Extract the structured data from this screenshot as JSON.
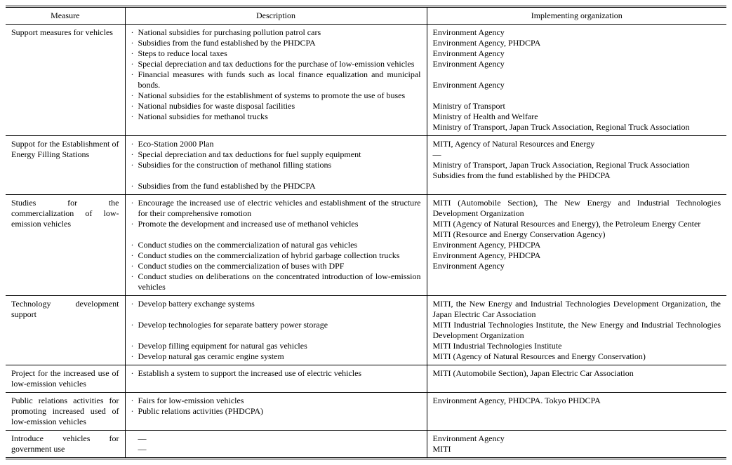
{
  "headers": {
    "measure": "Measure",
    "description": "Description",
    "org": "Implementing organization"
  },
  "rows": [
    {
      "measure": "Support measures for vehicles",
      "desc": [
        "National subsidies for purchasing pollution patrol cars",
        "Subsidies from the fund established by the PHDCPA",
        "Steps to reduce local taxes",
        "Special depreciation and tax deductions for the purchase of low-emission vehicles",
        "Financial measures with funds such as local finance equalization and municipal bonds.",
        "National subsidies for the establishment of systems to promote the use of buses",
        "National nubsidies for waste disposal facilities",
        "National subsidies for methanol trucks"
      ],
      "org": [
        "Environment Agency",
        "Environment Agency, PHDCPA",
        "Environment Agency",
        "Environment Agency",
        "",
        "Environment Agency",
        "",
        "Ministry of Transport",
        "Ministry of Health and Welfare",
        "Ministry of Transport, Japan Truck Association, Regional Truck Association"
      ]
    },
    {
      "measure": "Suppot for the Establishment of Energy Filling Stations",
      "desc": [
        "Eco-Station 2000 Plan",
        "Special depreciation and tax deductions for fuel supply equipment",
        "Subsidies for the construction of methanol filling stations",
        "",
        "Subsidies from the fund established by the PHDCPA"
      ],
      "org": [
        "MITI, Agency of Natural Resources and Energy",
        "—",
        "Ministry of Transport, Japan Truck Association, Regional Truck Association",
        "Subsidies from the fund established by the PHDCPA"
      ]
    },
    {
      "measure": "Studies for the commercialization of low-emission vehicles",
      "desc": [
        "Encourage the increased use of electric vehicles and establishment of the structure for their comprehensive romotion",
        "Promote the development and increased use of methanol vehicles",
        "",
        "Conduct studies on the commercialization of natural gas vehicles",
        "Conduct studies on the commercialization of hybrid garbage collection trucks",
        "Conduct studies on the commercialization of buses with DPF",
        "Conduct studies on deliberations on the concentrated introduction of low-emission vehicles"
      ],
      "org": [
        "MITI (Automobile Section), The New Energy and Industrial Technologies Development Organization",
        "MITI (Agency of Natural Resources and Energy), the Petroleum Energy Center",
        "MITI (Resource and Energy Conservation Agency)",
        "Environment Agency, PHDCPA",
        "Environment Agency, PHDCPA",
        "Environment Agency"
      ]
    },
    {
      "measure": "Technology development support",
      "desc": [
        "Develop battery exchange systems",
        "",
        "Develop technologies for separate battery power storage",
        "",
        "Develop filling equipment for natural gas vehicles",
        "Develop natural gas ceramic engine system"
      ],
      "org": [
        "MITI, the New Energy and Industrial Technologies Development Organization, the Japan Electric Car Association",
        "MITI Industrial Technologies Institute, the New Energy and Industrial Technologies Development Organization",
        "MITI Industrial Technologies Institute",
        "MITI (Agency of Natural Resources and Energy Conservation)"
      ]
    },
    {
      "measure": "Project for the increased use of low-emission vehicles",
      "desc": [
        "Establish a system to support the increased use of electric vehicles"
      ],
      "org": [
        "MITI (Automobile Section), Japan Electric Car Association"
      ]
    },
    {
      "measure": "Public relations activities for promoting increased used of low-emission vehicles",
      "desc": [
        "Fairs for low-emission vehicles",
        "Public relations activities (PHDCPA)"
      ],
      "org": [
        "Environment Agency, PHDCPA. Tokyo PHDCPA"
      ]
    },
    {
      "measure": "Introduce vehicles for government use",
      "desc_plain": [
        "—",
        "—"
      ],
      "org": [
        "Environment Agency",
        "MITI"
      ]
    }
  ]
}
